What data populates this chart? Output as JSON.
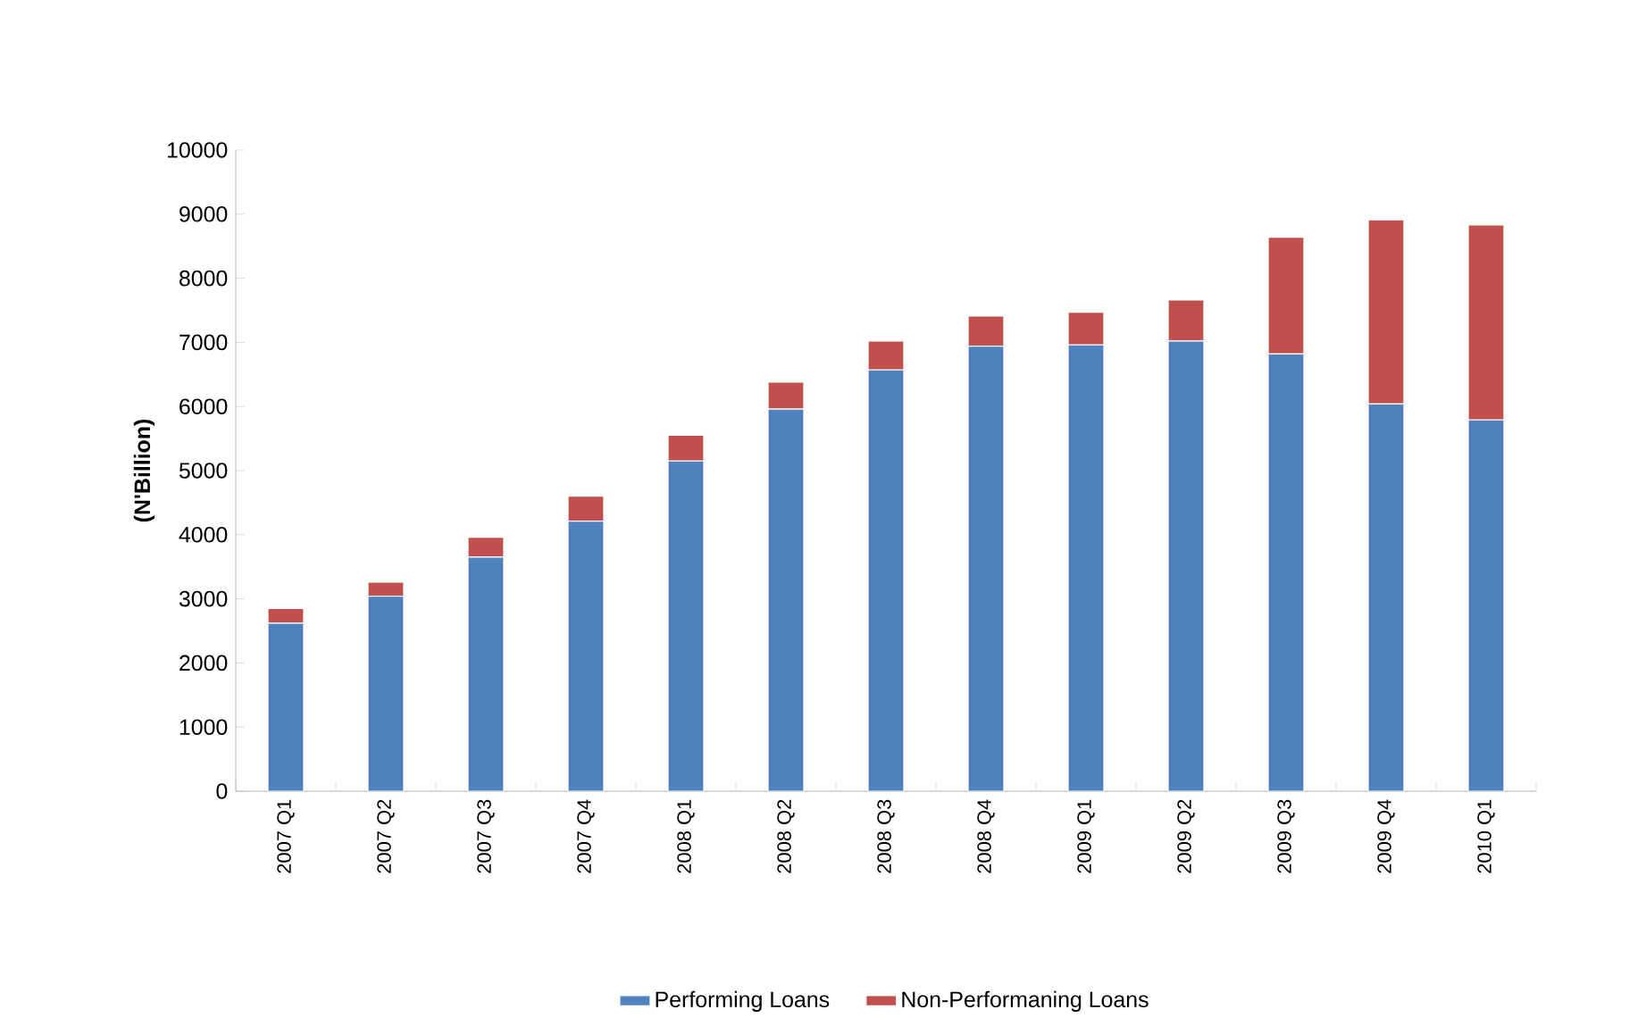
{
  "chart_data": {
    "type": "bar",
    "stacked": true,
    "ylabel": "(N'Billion)",
    "categories": [
      "2007 Q1",
      "2007 Q2",
      "2007 Q3",
      "2007 Q4",
      "2008 Q1",
      "2008 Q2",
      "2008 Q3",
      "2008 Q4",
      "2009 Q1",
      "2009 Q2",
      "2009 Q3",
      "2009 Q4",
      "2010 Q1"
    ],
    "series": [
      {
        "name": "Performing Loans",
        "color": "#4f81bd",
        "values": [
          2620,
          3040,
          3650,
          4210,
          5150,
          5960,
          6570,
          6940,
          6960,
          7020,
          6820,
          6040,
          5790
        ]
      },
      {
        "name": "Non-Performaning Loans",
        "color": "#c0504d",
        "values": [
          230,
          220,
          310,
          390,
          400,
          420,
          450,
          470,
          510,
          640,
          1820,
          2870,
          3040
        ]
      }
    ],
    "ylim": [
      0,
      10000
    ],
    "yticks": [
      0,
      1000,
      2000,
      3000,
      4000,
      5000,
      6000,
      7000,
      8000,
      9000,
      10000
    ],
    "grid": false,
    "legend": "bottom"
  }
}
